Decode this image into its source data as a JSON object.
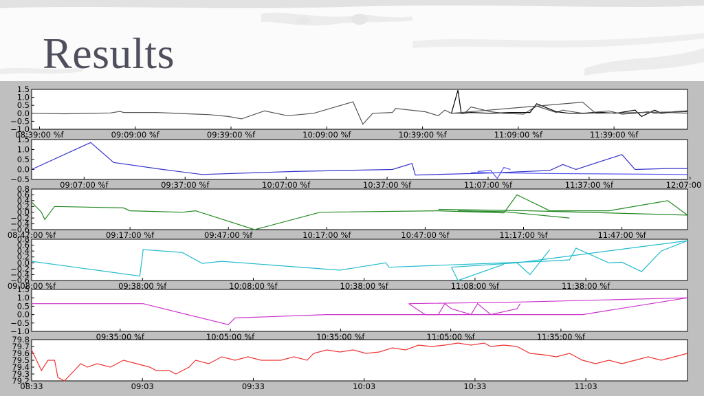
{
  "title": "Results",
  "chart_data": [
    {
      "type": "line",
      "color": "#555555",
      "ylim": [
        -1.0,
        1.5
      ],
      "yticks": [
        "1.5",
        "1.0",
        "0.5",
        "0.0",
        "−0.5",
        "−1.0"
      ],
      "xticks": [
        "08:39:00 %f",
        "09:09:00 %f",
        "09:39:00 %f",
        "10:09:00 %f",
        "10:39:00 %f",
        "11:09:00 %f",
        "11:39:00 %f"
      ],
      "series": [
        {
          "color": "#555555",
          "points": [
            [
              0,
              0.0
            ],
            [
              0.05,
              -0.03
            ],
            [
              0.12,
              0.02
            ],
            [
              0.135,
              0.12
            ],
            [
              0.14,
              0.05
            ],
            [
              0.19,
              0.05
            ],
            [
              0.25,
              -0.05
            ],
            [
              0.27,
              -0.08
            ],
            [
              0.3,
              -0.2
            ],
            [
              0.32,
              -0.35
            ],
            [
              0.355,
              0.15
            ],
            [
              0.39,
              -0.15
            ],
            [
              0.43,
              0.0
            ],
            [
              0.49,
              0.72
            ],
            [
              0.505,
              -0.68
            ],
            [
              0.52,
              0.0
            ],
            [
              0.55,
              0.05
            ],
            [
              0.555,
              0.3
            ],
            [
              0.6,
              0.1
            ],
            [
              0.62,
              -0.15
            ],
            [
              0.63,
              0.2
            ],
            [
              0.64,
              0.0
            ],
            [
              0.66,
              0.0
            ],
            [
              0.67,
              0.4
            ],
            [
              0.7,
              0.1
            ],
            [
              0.72,
              0.0
            ],
            [
              0.75,
              -0.05
            ],
            [
              0.77,
              0.45
            ],
            [
              0.8,
              0.05
            ],
            [
              0.81,
              0.2
            ],
            [
              0.84,
              0.0
            ],
            [
              0.88,
              0.15
            ],
            [
              0.9,
              -0.05
            ],
            [
              0.92,
              0.0
            ],
            [
              0.94,
              0.1
            ],
            [
              0.95,
              0.0
            ],
            [
              0.97,
              0.05
            ],
            [
              1.0,
              0.0
            ]
          ]
        },
        {
          "color": "#000000",
          "points": [
            [
              0.64,
              0.0
            ],
            [
              0.65,
              1.45
            ],
            [
              0.655,
              0.0
            ],
            [
              0.67,
              0.05
            ],
            [
              0.7,
              0.0
            ],
            [
              0.73,
              0.05
            ],
            [
              0.76,
              0.05
            ],
            [
              0.77,
              0.6
            ],
            [
              0.8,
              0.1
            ],
            [
              0.82,
              0.0
            ],
            [
              0.84,
              0.0
            ],
            [
              0.87,
              0.05
            ],
            [
              0.89,
              0.0
            ],
            [
              0.92,
              0.2
            ],
            [
              0.93,
              -0.2
            ],
            [
              0.95,
              0.2
            ],
            [
              0.96,
              0.0
            ],
            [
              0.98,
              0.1
            ],
            [
              1.0,
              0.15
            ]
          ]
        },
        {
          "color": "#555555",
          "points": [
            [
              0.64,
              0.0
            ],
            [
              0.84,
              0.7
            ],
            [
              0.86,
              0.0
            ],
            [
              1.0,
              0.1
            ]
          ]
        }
      ]
    },
    {
      "type": "line",
      "color": "#3333cc",
      "ylim": [
        -0.5,
        1.5
      ],
      "yticks": [
        "1.5",
        "1.0",
        "0.5",
        "0.0",
        "−0.5"
      ],
      "xticks": [
        "09:07:00 %f",
        "09:37:00 %f",
        "10:07:00 %f",
        "10:37:00 %f",
        "11:07:00 %f",
        "11:37:00 %f",
        "12:07:00 %f"
      ],
      "series": [
        {
          "color": "#3333cc",
          "points": [
            [
              0,
              0.0
            ],
            [
              0.09,
              1.35
            ],
            [
              0.125,
              0.35
            ],
            [
              0.2,
              0.0
            ],
            [
              0.26,
              -0.25
            ],
            [
              0.4,
              -0.1
            ],
            [
              0.55,
              0.0
            ],
            [
              0.58,
              0.3
            ],
            [
              0.585,
              -0.28
            ],
            [
              0.7,
              -0.18
            ],
            [
              0.79,
              -0.05
            ],
            [
              0.81,
              0.25
            ],
            [
              0.83,
              0.0
            ],
            [
              0.9,
              0.75
            ],
            [
              0.92,
              0.0
            ],
            [
              0.97,
              0.05
            ],
            [
              1.0,
              0.05
            ]
          ]
        },
        {
          "color": "#5555ee",
          "points": [
            [
              0.68,
              -0.1
            ],
            [
              0.7,
              -0.05
            ],
            [
              0.71,
              -0.45
            ],
            [
              0.72,
              0.1
            ],
            [
              0.73,
              0.0
            ]
          ]
        },
        {
          "color": "#5555ee",
          "points": [
            [
              0.67,
              -0.15
            ],
            [
              0.78,
              -0.2
            ],
            [
              1.0,
              -0.25
            ]
          ]
        }
      ]
    },
    {
      "type": "line",
      "color": "#228822",
      "ylim": [
        -0.6,
        0.8
      ],
      "yticks": [
        "0.8",
        "0.6",
        "0.4",
        "0.2",
        "0.0",
        "−0.2",
        "−0.4",
        "−0.6"
      ],
      "xticks": [
        "08:47:00 %f",
        "09:17:00 %f",
        "09:47:00 %f",
        "10:17:00 %f",
        "10:47:00 %f",
        "11:17:00 %f",
        "11:47:00 %f"
      ],
      "series": [
        {
          "color": "#228822",
          "points": [
            [
              0,
              0.35
            ],
            [
              0.015,
              0.0
            ],
            [
              0.02,
              -0.25
            ],
            [
              0.035,
              0.2
            ],
            [
              0.14,
              0.15
            ],
            [
              0.15,
              0.05
            ],
            [
              0.23,
              0.0
            ],
            [
              0.25,
              0.05
            ],
            [
              0.34,
              -0.6
            ],
            [
              0.44,
              0.0
            ],
            [
              0.62,
              0.05
            ],
            [
              0.72,
              -0.02
            ],
            [
              0.74,
              0.6
            ],
            [
              0.79,
              0.05
            ],
            [
              0.88,
              0.05
            ],
            [
              0.97,
              0.4
            ],
            [
              1.0,
              -0.1
            ]
          ]
        },
        {
          "color": "#228822",
          "points": [
            [
              0.62,
              0.1
            ],
            [
              0.76,
              0.05
            ],
            [
              1.0,
              -0.1
            ]
          ]
        },
        {
          "color": "#228822",
          "points": [
            [
              0.65,
              0.05
            ],
            [
              0.72,
              0.02
            ],
            [
              0.82,
              -0.2
            ]
          ]
        }
      ]
    },
    {
      "type": "line",
      "color": "#22bbcc",
      "ylim": [
        -0.6,
        0.8
      ],
      "yticks": [
        "0.8",
        "0.6",
        "0.4",
        "0.2",
        "0.0",
        "−0.2",
        "−0.4",
        "−0.6"
      ],
      "xticks": [
        "09:08:00 %f",
        "09:38:00 %f",
        "10:08:00 %f",
        "10:38:00 %f",
        "11:08:00 %f",
        "11:38:00 %f"
      ],
      "series": [
        {
          "color": "#22bbcc",
          "points": [
            [
              0,
              0.05
            ],
            [
              0.165,
              -0.45
            ],
            [
              0.17,
              0.45
            ],
            [
              0.23,
              0.35
            ],
            [
              0.26,
              -0.02
            ],
            [
              0.29,
              0.05
            ],
            [
              0.47,
              -0.25
            ],
            [
              0.54,
              0.0
            ],
            [
              0.545,
              -0.15
            ],
            [
              0.78,
              0.05
            ],
            [
              0.82,
              0.1
            ],
            [
              0.83,
              0.5
            ],
            [
              0.88,
              0.0
            ],
            [
              0.9,
              0.02
            ],
            [
              0.93,
              -0.3
            ],
            [
              0.96,
              0.4
            ],
            [
              1.0,
              0.75
            ]
          ]
        },
        {
          "color": "#22bbcc",
          "points": [
            [
              0.64,
              -0.15
            ],
            [
              0.74,
              0.0
            ],
            [
              0.76,
              -0.4
            ],
            [
              0.79,
              0.45
            ]
          ]
        },
        {
          "color": "#22bbcc",
          "points": [
            [
              0.64,
              -0.15
            ],
            [
              0.65,
              -0.6
            ],
            [
              0.72,
              -0.05
            ]
          ]
        },
        {
          "color": "#22bbcc",
          "points": [
            [
              0.74,
              0.0
            ],
            [
              1.0,
              0.75
            ]
          ]
        }
      ]
    },
    {
      "type": "line",
      "color": "#cc33cc",
      "ylim": [
        -1.0,
        1.5
      ],
      "yticks": [
        "1.5",
        "1.0",
        "0.5",
        "0.0",
        "−0.5",
        "−1.0"
      ],
      "xticks": [
        "09:35:00 %f",
        "10:05:00 %f",
        "10:35:00 %f",
        "11:05:00 %f",
        "11:35:00 %f"
      ],
      "series": [
        {
          "color": "#cc33cc",
          "points": [
            [
              0,
              0.65
            ],
            [
              0.17,
              0.65
            ],
            [
              0.3,
              -0.6
            ],
            [
              0.31,
              -0.2
            ],
            [
              0.45,
              0.0
            ],
            [
              0.61,
              0.0
            ],
            [
              0.66,
              0.0
            ],
            [
              0.84,
              0.0
            ],
            [
              1.0,
              1.0
            ]
          ]
        },
        {
          "color": "#cc33cc",
          "points": [
            [
              0.575,
              0.65
            ],
            [
              0.6,
              0.0
            ],
            [
              0.62,
              0.0
            ],
            [
              0.63,
              0.65
            ],
            [
              0.64,
              0.35
            ],
            [
              0.67,
              0.0
            ],
            [
              0.68,
              0.65
            ],
            [
              0.7,
              0.0
            ],
            [
              0.74,
              0.35
            ],
            [
              0.745,
              0.65
            ]
          ]
        },
        {
          "color": "#cc33cc",
          "points": [
            [
              0.575,
              0.65
            ],
            [
              0.745,
              0.75
            ],
            [
              1.0,
              1.0
            ]
          ]
        }
      ]
    },
    {
      "type": "line",
      "color": "#ee3333",
      "ylim": [
        79.2,
        79.8
      ],
      "yticks": [
        "79.8",
        "79.7",
        "79.6",
        "79.5",
        "79.4",
        "79.3",
        "79.2"
      ],
      "xticks": [
        "08:33",
        "09:03",
        "09:33",
        "10:03",
        "10:33",
        "11:03"
      ],
      "series": [
        {
          "color": "#ee3333",
          "points": [
            [
              0,
              79.65
            ],
            [
              0.005,
              79.55
            ],
            [
              0.015,
              79.35
            ],
            [
              0.025,
              79.5
            ],
            [
              0.035,
              79.5
            ],
            [
              0.04,
              79.25
            ],
            [
              0.05,
              79.2
            ],
            [
              0.06,
              79.3
            ],
            [
              0.075,
              79.45
            ],
            [
              0.085,
              79.4
            ],
            [
              0.1,
              79.45
            ],
            [
              0.12,
              79.4
            ],
            [
              0.14,
              79.5
            ],
            [
              0.16,
              79.45
            ],
            [
              0.18,
              79.4
            ],
            [
              0.19,
              79.35
            ],
            [
              0.21,
              79.35
            ],
            [
              0.22,
              79.3
            ],
            [
              0.24,
              79.4
            ],
            [
              0.25,
              79.5
            ],
            [
              0.27,
              79.45
            ],
            [
              0.29,
              79.55
            ],
            [
              0.31,
              79.5
            ],
            [
              0.33,
              79.55
            ],
            [
              0.35,
              79.5
            ],
            [
              0.38,
              79.5
            ],
            [
              0.4,
              79.55
            ],
            [
              0.42,
              79.5
            ],
            [
              0.43,
              79.6
            ],
            [
              0.45,
              79.65
            ],
            [
              0.47,
              79.62
            ],
            [
              0.49,
              79.65
            ],
            [
              0.51,
              79.6
            ],
            [
              0.53,
              79.62
            ],
            [
              0.55,
              79.68
            ],
            [
              0.57,
              79.65
            ],
            [
              0.59,
              79.72
            ],
            [
              0.61,
              79.7
            ],
            [
              0.63,
              79.72
            ],
            [
              0.65,
              79.75
            ],
            [
              0.67,
              79.72
            ],
            [
              0.69,
              79.75
            ],
            [
              0.7,
              79.7
            ],
            [
              0.72,
              79.72
            ],
            [
              0.74,
              79.7
            ],
            [
              0.75,
              79.65
            ],
            [
              0.76,
              79.6
            ],
            [
              0.78,
              79.58
            ],
            [
              0.8,
              79.55
            ],
            [
              0.82,
              79.6
            ],
            [
              0.84,
              79.5
            ],
            [
              0.86,
              79.45
            ],
            [
              0.88,
              79.5
            ],
            [
              0.9,
              79.45
            ],
            [
              0.92,
              79.5
            ],
            [
              0.94,
              79.55
            ],
            [
              0.96,
              79.5
            ],
            [
              0.98,
              79.55
            ],
            [
              1.0,
              79.6
            ]
          ]
        }
      ]
    }
  ]
}
